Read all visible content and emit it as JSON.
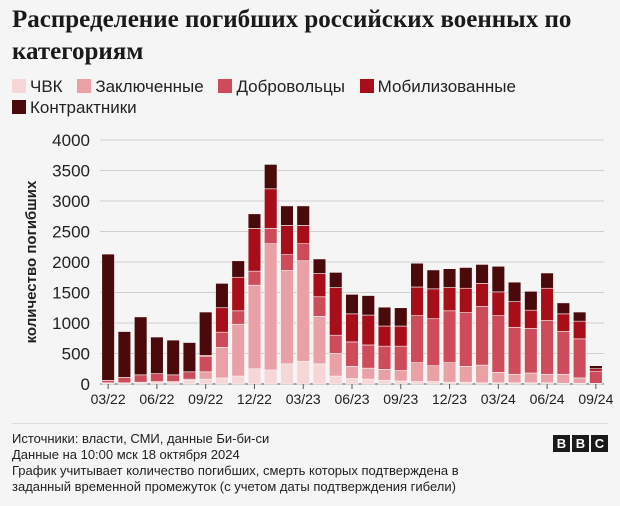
{
  "title": "Распределение погибших российских военных по категориям",
  "legend": [
    {
      "name": "ЧВК",
      "color": "#f6d6d6"
    },
    {
      "name": "Заключенные",
      "color": "#e9a0a6"
    },
    {
      "name": "Добровольцы",
      "color": "#cd4b5a"
    },
    {
      "name": "Мобилизованные",
      "color": "#a80d1a"
    },
    {
      "name": "Контрактники",
      "color": "#4a0a0c"
    }
  ],
  "footer": {
    "line1": "Источники: власти, СМИ, данные Би-би-си",
    "line2": "Данные на 10:00 мск 18 октября 2024",
    "line3": "График учитывает количество погибших, смерть которых подтверждена в",
    "line4": "заданный временной промежуток (с учетом даты подтверждения гибели)"
  },
  "brand": [
    "B",
    "B",
    "C"
  ],
  "chart_data": {
    "type": "bar",
    "stacked": true,
    "ylabel": "количество погибших",
    "ylim": [
      0,
      4000
    ],
    "yticks": [
      0,
      500,
      1000,
      1500,
      2000,
      2500,
      3000,
      3500,
      4000
    ],
    "xtick_labels": [
      {
        "index": 0,
        "label": "03/22"
      },
      {
        "index": 3,
        "label": "06/22"
      },
      {
        "index": 6,
        "label": "09/22"
      },
      {
        "index": 9,
        "label": "12/22"
      },
      {
        "index": 12,
        "label": "03/23"
      },
      {
        "index": 15,
        "label": "06/23"
      },
      {
        "index": 18,
        "label": "09/23"
      },
      {
        "index": 21,
        "label": "12/23"
      },
      {
        "index": 24,
        "label": "03/24"
      },
      {
        "index": 27,
        "label": "06/24"
      },
      {
        "index": 30,
        "label": "09/24"
      }
    ],
    "categories": [
      "03/22",
      "04/22",
      "05/22",
      "06/22",
      "07/22",
      "08/22",
      "09/22",
      "10/22",
      "11/22",
      "12/22",
      "01/23",
      "02/23",
      "03/23",
      "04/23",
      "05/23",
      "06/23",
      "07/23",
      "08/23",
      "09/23",
      "10/23",
      "11/23",
      "12/23",
      "01/24",
      "02/24",
      "03/24",
      "04/24",
      "05/24",
      "06/24",
      "07/24",
      "08/24",
      "09/24"
    ],
    "series": [
      {
        "name": "ЧВК",
        "color": "#f6d6d6",
        "values": [
          20,
          20,
          30,
          40,
          40,
          60,
          80,
          100,
          130,
          250,
          230,
          330,
          370,
          330,
          130,
          90,
          80,
          60,
          50,
          40,
          40,
          30,
          30,
          20,
          20,
          20,
          20,
          20,
          10,
          10,
          0
        ]
      },
      {
        "name": "Заключенные",
        "color": "#e9a0a6",
        "values": [
          0,
          0,
          0,
          0,
          0,
          20,
          120,
          500,
          850,
          1370,
          2070,
          1530,
          1650,
          780,
          370,
          200,
          180,
          180,
          170,
          310,
          260,
          320,
          260,
          290,
          170,
          140,
          160,
          140,
          150,
          90,
          10
        ]
      },
      {
        "name": "Добровольцы",
        "color": "#cd4b5a",
        "values": [
          40,
          90,
          120,
          130,
          110,
          120,
          250,
          250,
          220,
          230,
          250,
          260,
          280,
          320,
          300,
          400,
          380,
          380,
          400,
          770,
          770,
          850,
          880,
          960,
          930,
          770,
          730,
          880,
          700,
          640,
          200
        ]
      },
      {
        "name": "Мобилизованные",
        "color": "#a80d1a",
        "values": [
          0,
          0,
          0,
          0,
          0,
          0,
          20,
          400,
          550,
          700,
          650,
          480,
          300,
          380,
          780,
          460,
          490,
          330,
          330,
          470,
          490,
          380,
          400,
          380,
          390,
          420,
          300,
          530,
          290,
          290,
          40
        ]
      },
      {
        "name": "Контрактники",
        "color": "#4a0a0c",
        "values": [
          2070,
          750,
          950,
          600,
          570,
          480,
          710,
          400,
          270,
          240,
          400,
          320,
          320,
          240,
          250,
          320,
          320,
          310,
          300,
          390,
          310,
          310,
          340,
          310,
          420,
          320,
          310,
          250,
          180,
          150,
          50
        ]
      }
    ]
  }
}
